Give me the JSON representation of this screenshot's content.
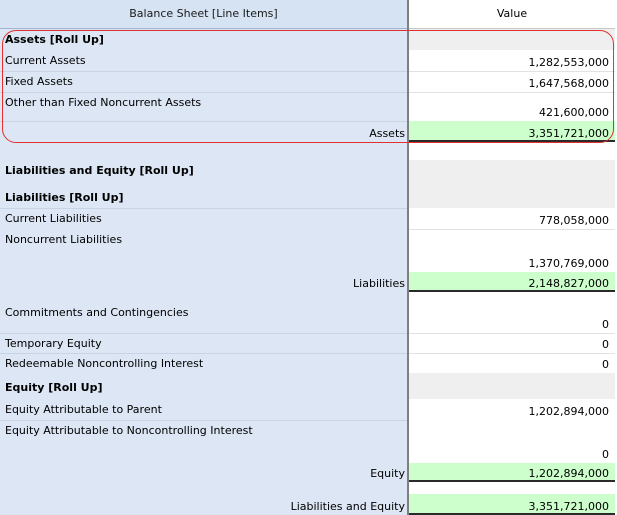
{
  "header": {
    "line_items": "Balance Sheet [Line Items]",
    "value": "Value"
  },
  "rows": [
    {
      "label": "Assets [Roll Up]",
      "value": ""
    },
    {
      "label": "Current Assets",
      "value": "1,282,553,000"
    },
    {
      "label": "Fixed Assets",
      "value": "1,647,568,000"
    },
    {
      "label": "Other than Fixed Noncurrent Assets",
      "value": "421,600,000"
    },
    {
      "label": "Assets",
      "value": "3,351,721,000"
    },
    {
      "label": "Liabilities and Equity [Roll Up]",
      "value": ""
    },
    {
      "label": "Liabilities [Roll Up]",
      "value": ""
    },
    {
      "label": "Current Liabilities",
      "value": "778,058,000"
    },
    {
      "label": "Noncurrent Liabilities",
      "value": "1,370,769,000"
    },
    {
      "label": "Liabilities",
      "value": "2,148,827,000"
    },
    {
      "label": "Commitments and Contingencies",
      "value": "0"
    },
    {
      "label": "Temporary Equity",
      "value": "0"
    },
    {
      "label": "Redeemable Noncontrolling Interest",
      "value": "0"
    },
    {
      "label": "Equity [Roll Up]",
      "value": ""
    },
    {
      "label": "Equity Attributable to Parent",
      "value": "1,202,894,000"
    },
    {
      "label": "Equity Attributable to Noncontrolling Interest",
      "value": "0"
    },
    {
      "label": "Equity",
      "value": "1,202,894,000"
    },
    {
      "label": "Liabilities and Equity",
      "value": "3,351,721,000"
    }
  ]
}
